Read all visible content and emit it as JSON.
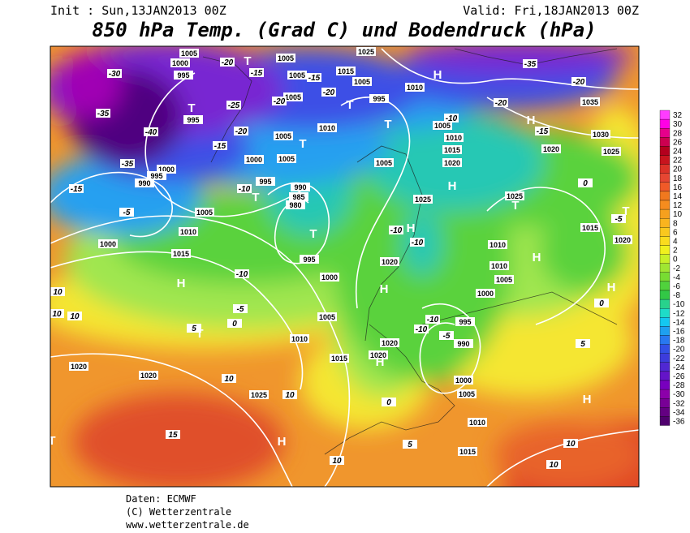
{
  "header": {
    "init": "Init : Sun,13JAN2013 00Z",
    "valid": "Valid: Fri,18JAN2013 00Z",
    "title": "850 hPa Temp. (Grad C) und Bodendruck (hPa)"
  },
  "map": {
    "isobar_labels": [
      "1005",
      "1000",
      "995",
      "995",
      "1005",
      "1005",
      "1015",
      "1025",
      "1005",
      "1010",
      "995",
      "1005",
      "1010",
      "1005",
      "1005",
      "1000",
      "995",
      "1005",
      "1005",
      "1010",
      "1015",
      "1020",
      "1025",
      "1020",
      "1025",
      "1030",
      "1035",
      "1000",
      "995",
      "990",
      "1005",
      "1010",
      "1015",
      "1000",
      "990",
      "985",
      "980",
      "995",
      "1000",
      "1005",
      "1010",
      "1015",
      "1020",
      "1020",
      "1020",
      "1010",
      "1010",
      "1005",
      "1000",
      "995",
      "990",
      "1000",
      "1005",
      "1010",
      "1015",
      "1020",
      "1020",
      "1025",
      "1015",
      "1020",
      "1025"
    ],
    "temperature_labels": [
      "-30",
      "-35",
      "-40",
      "-35",
      "-15",
      "-5",
      "-25",
      "-20",
      "-15",
      "-20",
      "-15",
      "-10",
      "-20",
      "-10",
      "-10",
      "-10",
      "-5",
      "0",
      "5",
      "10",
      "10",
      "10",
      "10",
      "10",
      "15",
      "10",
      "5",
      "0",
      "-5",
      "-10",
      "-10",
      "0",
      "0",
      "5",
      "10",
      "10",
      "-15",
      "-20",
      "-20",
      "-35",
      "-10",
      "-15",
      "-20",
      "-5"
    ],
    "pressure_centers": [
      "T",
      "T",
      "T",
      "T",
      "T",
      "T",
      "T",
      "H",
      "T",
      "H",
      "H",
      "H",
      "H",
      "H",
      "H",
      "H",
      "T",
      "T",
      "H",
      "H",
      "H",
      "T"
    ]
  },
  "legend": {
    "labels": [
      "32",
      "30",
      "28",
      "26",
      "24",
      "22",
      "20",
      "18",
      "16",
      "14",
      "12",
      "10",
      "8",
      "6",
      "4",
      "2",
      "0",
      "-2",
      "-4",
      "-6",
      "-8",
      "-10",
      "-12",
      "-14",
      "-16",
      "-18",
      "-20",
      "-22",
      "-24",
      "-26",
      "-28",
      "-30",
      "-32",
      "-34",
      "-36"
    ],
    "colors": [
      "#ff3cff",
      "#ff00e6",
      "#e6008c",
      "#cc0050",
      "#b4001e",
      "#c8141e",
      "#dc3228",
      "#e64632",
      "#f05a28",
      "#f0781e",
      "#f58c1e",
      "#f5a01e",
      "#fab41e",
      "#fac81e",
      "#fadc1e",
      "#f0f01e",
      "#c8f028",
      "#a0e632",
      "#78dc32",
      "#50d23c",
      "#32c846",
      "#28d28c",
      "#1edcc8",
      "#14c8f0",
      "#1ea0f0",
      "#2878f0",
      "#3250e6",
      "#3c3cdc",
      "#5028d2",
      "#6414c8",
      "#7800be",
      "#8c00aa",
      "#780096",
      "#640082",
      "#50006e"
    ]
  },
  "footer": {
    "source": "Daten: ECMWF",
    "copyright": "(C) Wetterzentrale",
    "url": "www.wetterzentrale.de"
  }
}
